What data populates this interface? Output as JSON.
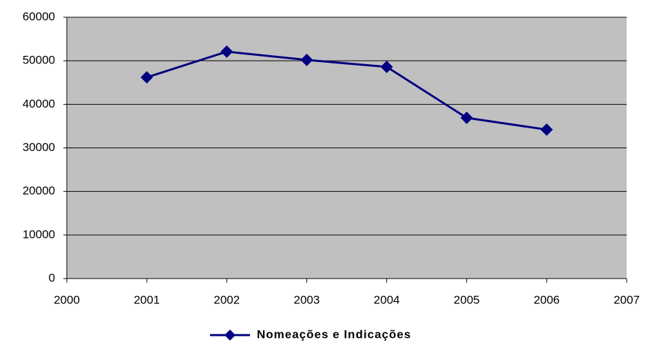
{
  "chart_data": {
    "type": "line",
    "x": [
      2001,
      2002,
      2003,
      2004,
      2005,
      2006
    ],
    "series": [
      {
        "name": "Nomeações e Indicações",
        "color": "#000080",
        "values": [
          46200,
          52100,
          50200,
          48600,
          36900,
          34200
        ]
      }
    ],
    "xlim": [
      2000,
      2007
    ],
    "xticks": [
      2000,
      2001,
      2002,
      2003,
      2004,
      2005,
      2006,
      2007
    ],
    "ylim": [
      0,
      60000
    ],
    "yticks": [
      0,
      10000,
      20000,
      30000,
      40000,
      50000,
      60000
    ],
    "grid": true,
    "plot_background": "#c0c0c0",
    "legend": "bottom"
  }
}
